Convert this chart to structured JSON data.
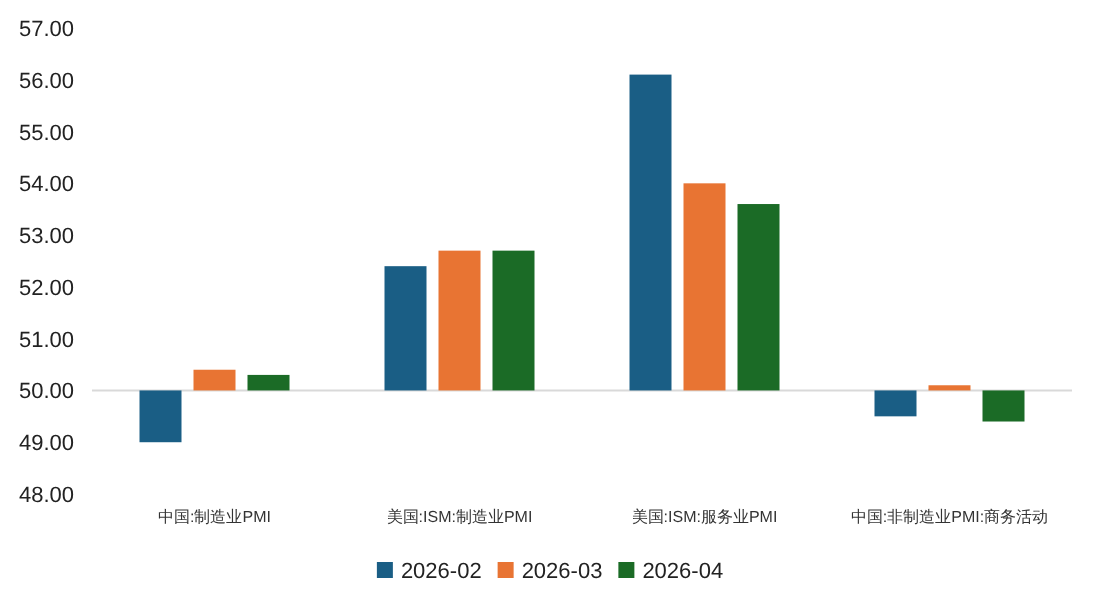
{
  "chart_data": {
    "type": "bar",
    "categories": [
      "中国:制造业PMI",
      "美国:ISM:制造业PMI",
      "美国:ISM:服务业PMI",
      "中国:非制造业PMI:商务活动"
    ],
    "series": [
      {
        "name": "2026-02",
        "color": "#1a5e85",
        "base": [
          50,
          50,
          50,
          50
        ],
        "values": [
          -1.0,
          2.4,
          6.1,
          -0.5
        ]
      },
      {
        "name": "2026-03",
        "color": "#e87433",
        "base": [
          50,
          50,
          50,
          50
        ],
        "values": [
          0.4,
          2.7,
          4.0,
          0.1
        ]
      },
      {
        "name": "2026-04",
        "color": "#1b6b26",
        "base": [
          50,
          50,
          50,
          50
        ],
        "values": [
          0.3,
          2.7,
          3.6,
          -0.6
        ]
      }
    ],
    "ylim": [
      48,
      57
    ],
    "yticks": [
      {
        "value": 48,
        "label": "48.00"
      },
      {
        "value": 49,
        "label": "49.00"
      },
      {
        "value": 50,
        "label": "50.00"
      },
      {
        "value": 51,
        "label": "51.00"
      },
      {
        "value": 52,
        "label": "52.00"
      },
      {
        "value": 53,
        "label": "53.00"
      },
      {
        "value": 54,
        "label": "54.00"
      },
      {
        "value": 55,
        "label": "55.00"
      },
      {
        "value": 56,
        "label": "56.00"
      },
      {
        "value": 57,
        "label": "57.00"
      }
    ],
    "ref_lines": [
      {
        "axis": "y",
        "value": 50,
        "color": "#d9d9d9"
      }
    ],
    "legend": "bottom"
  }
}
